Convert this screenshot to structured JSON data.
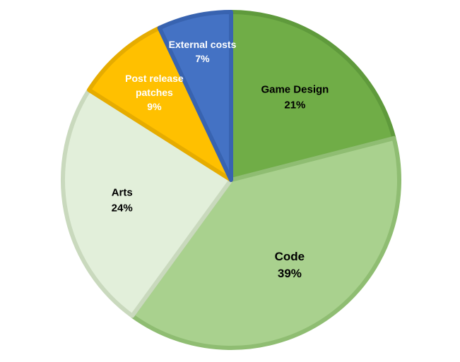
{
  "chart_data": {
    "type": "pie",
    "title": "",
    "start_angle_deg": 0,
    "direction": "clockwise",
    "slices": [
      {
        "label": "Game Design",
        "value": 21,
        "display": "21%",
        "color": "#70ad47",
        "border": "#5f9a3c",
        "text_color": "#000000",
        "label_lines": [
          "Game Design"
        ]
      },
      {
        "label": "Code",
        "value": 39,
        "display": "39%",
        "color": "#a9d18e",
        "border": "#8fbd72",
        "text_color": "#000000",
        "label_lines": [
          "Code"
        ]
      },
      {
        "label": "Arts",
        "value": 24,
        "display": "24%",
        "color": "#e2efda",
        "border": "#c9d9bd",
        "text_color": "#000000",
        "label_lines": [
          "Arts"
        ]
      },
      {
        "label": "Post release patches",
        "value": 9,
        "display": "9%",
        "color": "#ffc000",
        "border": "#e6ac00",
        "text_color": "#ffffff",
        "label_lines": [
          "Post release",
          "patches"
        ]
      },
      {
        "label": "External costs",
        "value": 7,
        "display": "7%",
        "color": "#4472c4",
        "border": "#3863b0",
        "text_color": "#ffffff",
        "label_lines": [
          "External costs"
        ]
      }
    ]
  }
}
